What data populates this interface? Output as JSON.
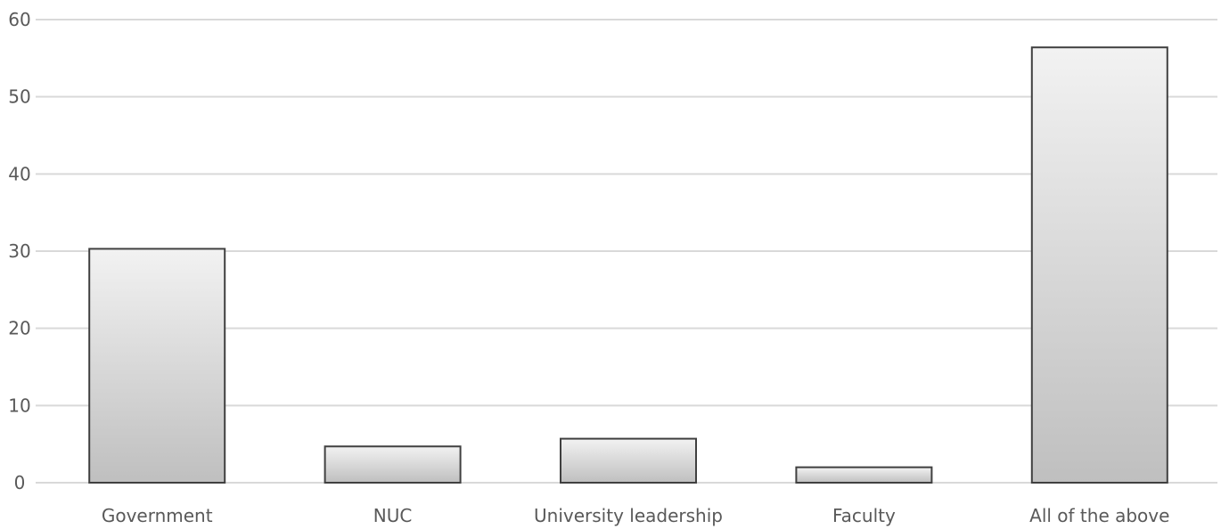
{
  "chart_data": {
    "type": "bar",
    "title": "",
    "xlabel": "",
    "ylabel": "",
    "categories": [
      "Government",
      "NUC",
      "University  leadership",
      "Faculty",
      "All of the above"
    ],
    "values": [
      30.3,
      4.7,
      5.7,
      2.0,
      56.4
    ],
    "ylim": [
      0,
      60
    ],
    "yticks": [
      "0",
      "10",
      "20",
      "30",
      "40",
      "50",
      "60"
    ],
    "grid": true,
    "legend": "none",
    "colors": {
      "bar_top": "#f2f2f2",
      "bar_bottom": "#bfbfbf",
      "bar_border": "#404040",
      "grid": "#d9d9d9",
      "text": "#595959"
    }
  }
}
